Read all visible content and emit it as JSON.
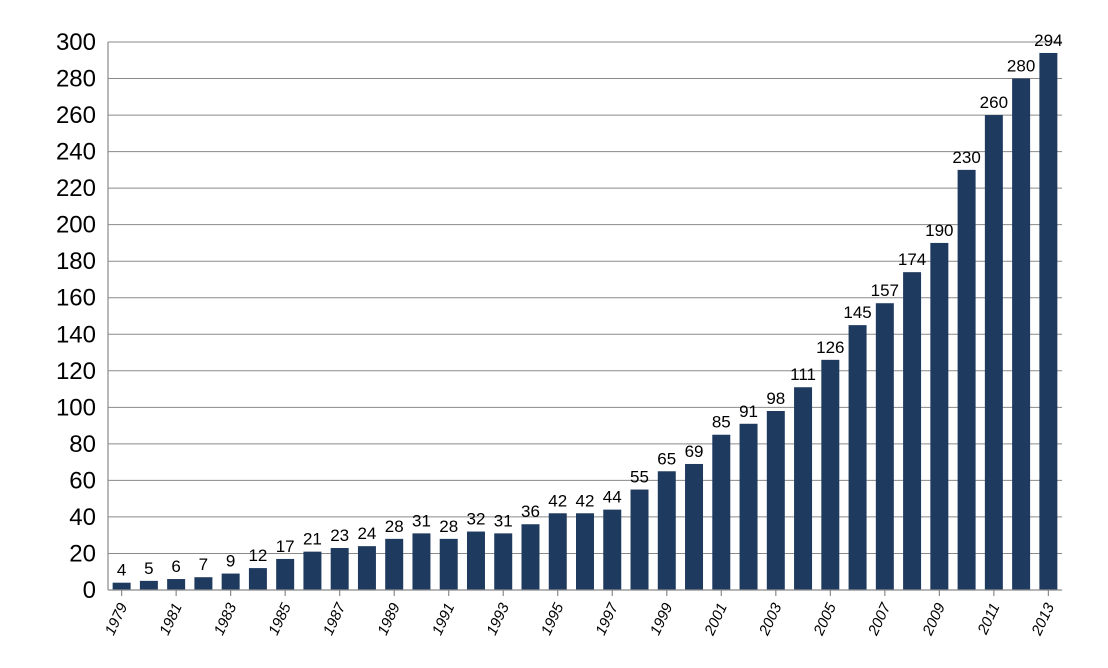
{
  "chart_data": {
    "type": "bar",
    "title": "",
    "xlabel": "",
    "ylabel": "",
    "categories": [
      "1979",
      "1980",
      "1981",
      "1982",
      "1983",
      "1984",
      "1985",
      "1986",
      "1987",
      "1988",
      "1989",
      "1990",
      "1991",
      "1992",
      "1993",
      "1994",
      "1995",
      "1996",
      "1997",
      "1998",
      "1999",
      "2000",
      "2001",
      "2002",
      "2003",
      "2004",
      "2005",
      "2006",
      "2007",
      "2008",
      "2009",
      "2010",
      "2011",
      "2012",
      "2013"
    ],
    "tick_labels": [
      "1979",
      "1981",
      "1983",
      "1985",
      "1987",
      "1989",
      "1991",
      "1993",
      "1995",
      "1997",
      "1999",
      "2001",
      "2003",
      "2005",
      "2007",
      "2009",
      "2011",
      "2013"
    ],
    "values": [
      4,
      5,
      6,
      7,
      9,
      12,
      17,
      21,
      23,
      24,
      28,
      31,
      28,
      32,
      31,
      36,
      42,
      42,
      44,
      55,
      65,
      69,
      85,
      91,
      98,
      111,
      126,
      145,
      157,
      174,
      190,
      230,
      260,
      280,
      294
    ],
    "ylim": [
      0,
      300
    ],
    "yticks": [
      0,
      20,
      40,
      60,
      80,
      100,
      120,
      140,
      160,
      180,
      200,
      220,
      240,
      260,
      280,
      300
    ],
    "grid": true,
    "legend": "none",
    "bar_color": "#1f3a5f"
  }
}
